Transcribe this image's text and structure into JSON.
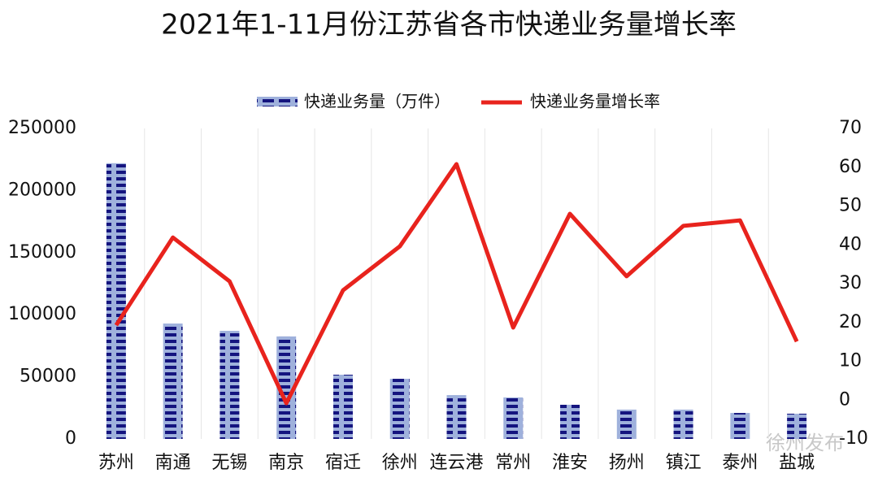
{
  "chart_data": {
    "type": "bar-line",
    "title": "2021年1-11月份江苏省各市快递业务量增长率",
    "categories": [
      "苏州",
      "南通",
      "无锡",
      "南京",
      "宿迁",
      "徐州",
      "连云港",
      "常州",
      "淮安",
      "扬州",
      "镇江",
      "泰州",
      "盐城"
    ],
    "series": [
      {
        "name": "快递业务量（万件）",
        "color": "#1a1a8c",
        "kind": "bar",
        "values": [
          222000,
          92900,
          87000,
          82500,
          51700,
          48400,
          35300,
          33400,
          27500,
          23600,
          23600,
          20900,
          20300
        ]
      },
      {
        "name": "快递业务量增长率",
        "color": "#e8231d",
        "kind": "line",
        "axis": "y2",
        "values": [
          19.3,
          41.9,
          30.6,
          -0.8,
          28.3,
          39.6,
          60.8,
          18.7,
          48,
          31.9,
          44.9,
          46.3,
          15.1
        ]
      }
    ],
    "ylim": [
      0,
      250000
    ],
    "yticks": [
      0,
      50000,
      100000,
      150000,
      200000,
      250000
    ],
    "y2lim": [
      -10,
      70
    ],
    "y2ticks": [
      -10,
      0,
      10,
      20,
      30,
      40,
      50,
      60,
      70
    ],
    "legend": "top",
    "watermark": "徐州发布"
  }
}
